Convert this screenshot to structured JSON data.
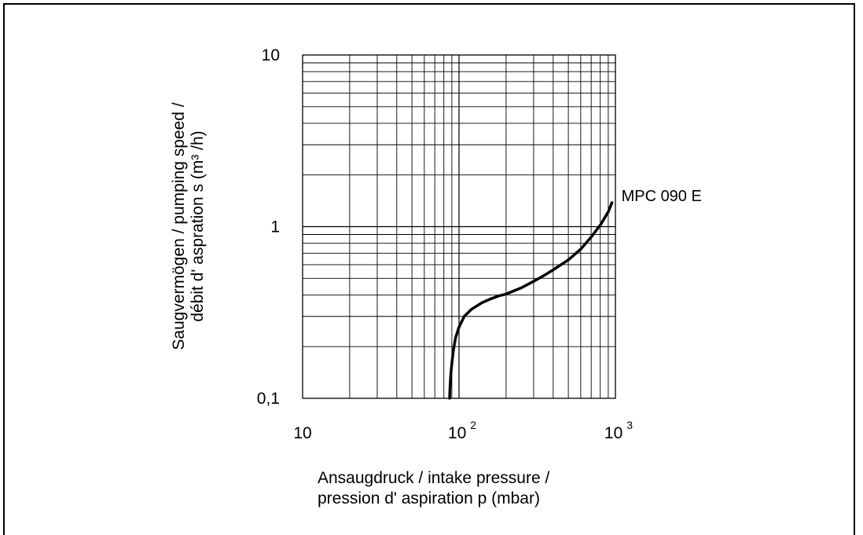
{
  "chart_data": {
    "type": "line",
    "title": "",
    "xlabel_lines": [
      "Ansaugdruck / intake pressure /",
      "pression d' aspiration p (mbar)"
    ],
    "ylabel_lines": [
      "Saugvermögen / pumping speed /",
      "débit d' aspration s (m³ /h)"
    ],
    "x_scale": "log",
    "y_scale": "log",
    "xlim": [
      10,
      1000
    ],
    "ylim": [
      0.1,
      10
    ],
    "grid": true,
    "x_ticks": [
      {
        "value": 10,
        "base": "10",
        "exp": ""
      },
      {
        "value": 100,
        "base": "10",
        "exp": "2"
      },
      {
        "value": 1000,
        "base": "10",
        "exp": "3"
      }
    ],
    "y_ticks": [
      {
        "value": 10,
        "label": "10"
      },
      {
        "value": 1,
        "label": "1"
      },
      {
        "value": 0.1,
        "label": "0,1"
      }
    ],
    "series": [
      {
        "name": "MPC 090 E",
        "x": [
          87,
          87.5,
          88.5,
          90,
          92,
          95,
          100,
          108,
          120,
          140,
          160,
          180,
          200,
          250,
          300,
          350,
          400,
          500,
          600,
          700,
          800,
          900,
          950
        ],
        "y": [
          0.1,
          0.115,
          0.135,
          0.16,
          0.19,
          0.225,
          0.26,
          0.3,
          0.33,
          0.36,
          0.38,
          0.395,
          0.405,
          0.44,
          0.48,
          0.52,
          0.56,
          0.64,
          0.74,
          0.87,
          1.02,
          1.22,
          1.38
        ]
      }
    ]
  }
}
